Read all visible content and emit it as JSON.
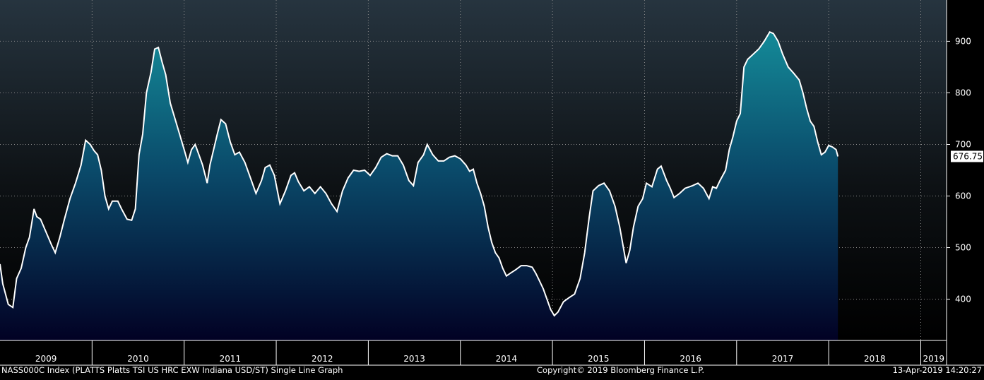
{
  "footer": {
    "left": "NASS000C Index (PLATTS Platts TSI US HRC EXW Indiana USD/ST) Single Line Graph",
    "center": "Copyright© 2019 Bloomberg Finance L.P.",
    "right": "13-Apr-2019 14:20:27"
  },
  "last_value_label": "676.75",
  "colors": {
    "line": "#ffffff",
    "area_top": "#148a98",
    "area_bottom": "#020124",
    "last_value_box": "#ffffff",
    "grid": "#8a8a8a"
  },
  "chart_data": {
    "type": "area",
    "title": "",
    "xlabel": "",
    "ylabel": "",
    "ylim": [
      320,
      980
    ],
    "xlim": [
      2009.0,
      2019.28
    ],
    "y_ticks": [
      400,
      500,
      600,
      700,
      800,
      900
    ],
    "x_tick_labels": [
      "2009",
      "2010",
      "2011",
      "2012",
      "2013",
      "2014",
      "2015",
      "2016",
      "2017",
      "2018",
      "2019"
    ],
    "grid": true,
    "legend": "none",
    "last_value": 676.75,
    "series": [
      {
        "points": [
          [
            2009.0,
            468
          ],
          [
            2009.03,
            430
          ],
          [
            2009.06,
            410
          ],
          [
            2009.09,
            390
          ],
          [
            2009.14,
            384
          ],
          [
            2009.18,
            440
          ],
          [
            2009.23,
            460
          ],
          [
            2009.28,
            500
          ],
          [
            2009.32,
            520
          ],
          [
            2009.37,
            575
          ],
          [
            2009.4,
            560
          ],
          [
            2009.44,
            555
          ],
          [
            2009.5,
            530
          ],
          [
            2009.56,
            505
          ],
          [
            2009.6,
            490
          ],
          [
            2009.65,
            520
          ],
          [
            2009.7,
            555
          ],
          [
            2009.76,
            595
          ],
          [
            2009.82,
            625
          ],
          [
            2009.88,
            660
          ],
          [
            2009.93,
            708
          ],
          [
            2009.98,
            700
          ],
          [
            2010.02,
            688
          ],
          [
            2010.06,
            680
          ],
          [
            2010.1,
            650
          ],
          [
            2010.14,
            600
          ],
          [
            2010.18,
            575
          ],
          [
            2010.22,
            590
          ],
          [
            2010.28,
            590
          ],
          [
            2010.32,
            575
          ],
          [
            2010.38,
            555
          ],
          [
            2010.43,
            553
          ],
          [
            2010.47,
            575
          ],
          [
            2010.51,
            680
          ],
          [
            2010.55,
            720
          ],
          [
            2010.59,
            800
          ],
          [
            2010.64,
            840
          ],
          [
            2010.68,
            885
          ],
          [
            2010.72,
            888
          ],
          [
            2010.76,
            860
          ],
          [
            2010.8,
            835
          ],
          [
            2010.85,
            780
          ],
          [
            2010.9,
            750
          ],
          [
            2010.95,
            720
          ],
          [
            2011.0,
            690
          ],
          [
            2011.04,
            665
          ],
          [
            2011.08,
            690
          ],
          [
            2011.12,
            700
          ],
          [
            2011.16,
            680
          ],
          [
            2011.2,
            660
          ],
          [
            2011.25,
            625
          ],
          [
            2011.28,
            660
          ],
          [
            2011.32,
            690
          ],
          [
            2011.36,
            720
          ],
          [
            2011.4,
            748
          ],
          [
            2011.45,
            740
          ],
          [
            2011.5,
            705
          ],
          [
            2011.55,
            680
          ],
          [
            2011.6,
            685
          ],
          [
            2011.66,
            665
          ],
          [
            2011.72,
            635
          ],
          [
            2011.78,
            605
          ],
          [
            2011.84,
            630
          ],
          [
            2011.88,
            655
          ],
          [
            2011.93,
            660
          ],
          [
            2011.98,
            640
          ],
          [
            2012.04,
            585
          ],
          [
            2012.1,
            610
          ],
          [
            2012.16,
            640
          ],
          [
            2012.2,
            645
          ],
          [
            2012.24,
            628
          ],
          [
            2012.3,
            610
          ],
          [
            2012.36,
            618
          ],
          [
            2012.42,
            605
          ],
          [
            2012.48,
            618
          ],
          [
            2012.54,
            605
          ],
          [
            2012.6,
            585
          ],
          [
            2012.66,
            570
          ],
          [
            2012.72,
            610
          ],
          [
            2012.78,
            635
          ],
          [
            2012.84,
            650
          ],
          [
            2012.9,
            648
          ],
          [
            2012.96,
            650
          ],
          [
            2013.02,
            640
          ],
          [
            2013.08,
            655
          ],
          [
            2013.14,
            675
          ],
          [
            2013.2,
            682
          ],
          [
            2013.26,
            678
          ],
          [
            2013.32,
            678
          ],
          [
            2013.38,
            660
          ],
          [
            2013.44,
            630
          ],
          [
            2013.49,
            620
          ],
          [
            2013.54,
            665
          ],
          [
            2013.6,
            680
          ],
          [
            2013.64,
            700
          ],
          [
            2013.7,
            680
          ],
          [
            2013.76,
            668
          ],
          [
            2013.82,
            668
          ],
          [
            2013.88,
            675
          ],
          [
            2013.94,
            678
          ],
          [
            2014.0,
            672
          ],
          [
            2014.06,
            660
          ],
          [
            2014.1,
            648
          ],
          [
            2014.14,
            652
          ],
          [
            2014.18,
            625
          ],
          [
            2014.22,
            605
          ],
          [
            2014.26,
            580
          ],
          [
            2014.3,
            540
          ],
          [
            2014.34,
            510
          ],
          [
            2014.38,
            490
          ],
          [
            2014.42,
            480
          ],
          [
            2014.46,
            460
          ],
          [
            2014.5,
            445
          ],
          [
            2014.54,
            450
          ],
          [
            2014.6,
            457
          ],
          [
            2014.66,
            465
          ],
          [
            2014.72,
            465
          ],
          [
            2014.78,
            462
          ],
          [
            2014.82,
            450
          ],
          [
            2014.86,
            435
          ],
          [
            2014.9,
            420
          ],
          [
            2014.94,
            400
          ],
          [
            2014.98,
            380
          ],
          [
            2015.02,
            368
          ],
          [
            2015.06,
            375
          ],
          [
            2015.12,
            395
          ],
          [
            2015.18,
            403
          ],
          [
            2015.24,
            410
          ],
          [
            2015.3,
            440
          ],
          [
            2015.35,
            490
          ],
          [
            2015.4,
            560
          ],
          [
            2015.44,
            610
          ],
          [
            2015.5,
            620
          ],
          [
            2015.56,
            625
          ],
          [
            2015.62,
            610
          ],
          [
            2015.68,
            580
          ],
          [
            2015.73,
            540
          ],
          [
            2015.77,
            500
          ],
          [
            2015.8,
            470
          ],
          [
            2015.84,
            495
          ],
          [
            2015.88,
            540
          ],
          [
            2015.93,
            580
          ],
          [
            2015.98,
            595
          ],
          [
            2016.02,
            625
          ],
          [
            2016.08,
            618
          ],
          [
            2016.14,
            652
          ],
          [
            2016.18,
            658
          ],
          [
            2016.24,
            630
          ],
          [
            2016.28,
            615
          ],
          [
            2016.32,
            597
          ],
          [
            2016.38,
            605
          ],
          [
            2016.44,
            615
          ],
          [
            2016.52,
            620
          ],
          [
            2016.58,
            625
          ],
          [
            2016.64,
            615
          ],
          [
            2016.7,
            595
          ],
          [
            2016.74,
            618
          ],
          [
            2016.78,
            615
          ],
          [
            2016.82,
            630
          ],
          [
            2016.88,
            650
          ],
          [
            2016.92,
            690
          ],
          [
            2016.96,
            715
          ],
          [
            2017.0,
            745
          ],
          [
            2017.04,
            760
          ],
          [
            2017.08,
            850
          ],
          [
            2017.12,
            865
          ],
          [
            2017.18,
            875
          ],
          [
            2017.24,
            885
          ],
          [
            2017.3,
            900
          ],
          [
            2017.36,
            918
          ],
          [
            2017.4,
            915
          ],
          [
            2017.45,
            900
          ],
          [
            2017.5,
            875
          ],
          [
            2017.56,
            850
          ],
          [
            2017.62,
            838
          ],
          [
            2017.68,
            825
          ],
          [
            2017.72,
            800
          ],
          [
            2017.76,
            770
          ],
          [
            2017.8,
            745
          ],
          [
            2017.84,
            735
          ],
          [
            2017.88,
            705
          ],
          [
            2017.92,
            680
          ],
          [
            2017.96,
            685
          ],
          [
            2018.0,
            698
          ],
          [
            2018.04,
            695
          ],
          [
            2018.08,
            690
          ],
          [
            2018.1,
            676.75
          ]
        ]
      }
    ]
  }
}
